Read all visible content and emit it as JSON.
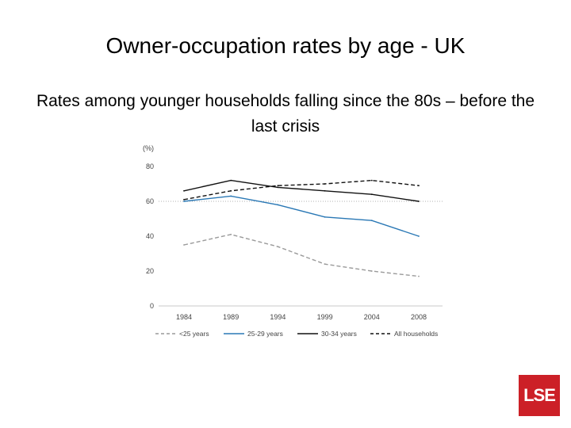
{
  "slide": {
    "title": "Owner-occupation rates by age - UK",
    "subtitle": "Rates among younger households falling since the 80s – before the last crisis"
  },
  "logo": {
    "text": "LSE",
    "color": "#cc2027"
  },
  "chart_data": {
    "type": "line",
    "ylabel": "(%)",
    "ylim": [
      0,
      80
    ],
    "yticks": [
      "0",
      "20",
      "40",
      "60",
      "80"
    ],
    "categories": [
      "1984",
      "1989",
      "1994",
      "1999",
      "2004",
      "2008"
    ],
    "grid": false,
    "reference_line": 60,
    "legend": "bottom",
    "series": [
      {
        "name": "<25 years",
        "values": [
          35,
          41,
          34,
          24,
          20,
          17
        ],
        "color": "#9a9a9a",
        "style": "dashed"
      },
      {
        "name": "25-29 years",
        "values": [
          60,
          63,
          58,
          51,
          49,
          40
        ],
        "color": "#2a78b5",
        "style": "solid"
      },
      {
        "name": "30-34 years",
        "values": [
          66,
          72,
          68,
          66,
          64,
          60
        ],
        "color": "#111111",
        "style": "solid"
      },
      {
        "name": "All households",
        "values": [
          61,
          66,
          69,
          70,
          72,
          69
        ],
        "color": "#111111",
        "style": "dashed"
      }
    ]
  }
}
